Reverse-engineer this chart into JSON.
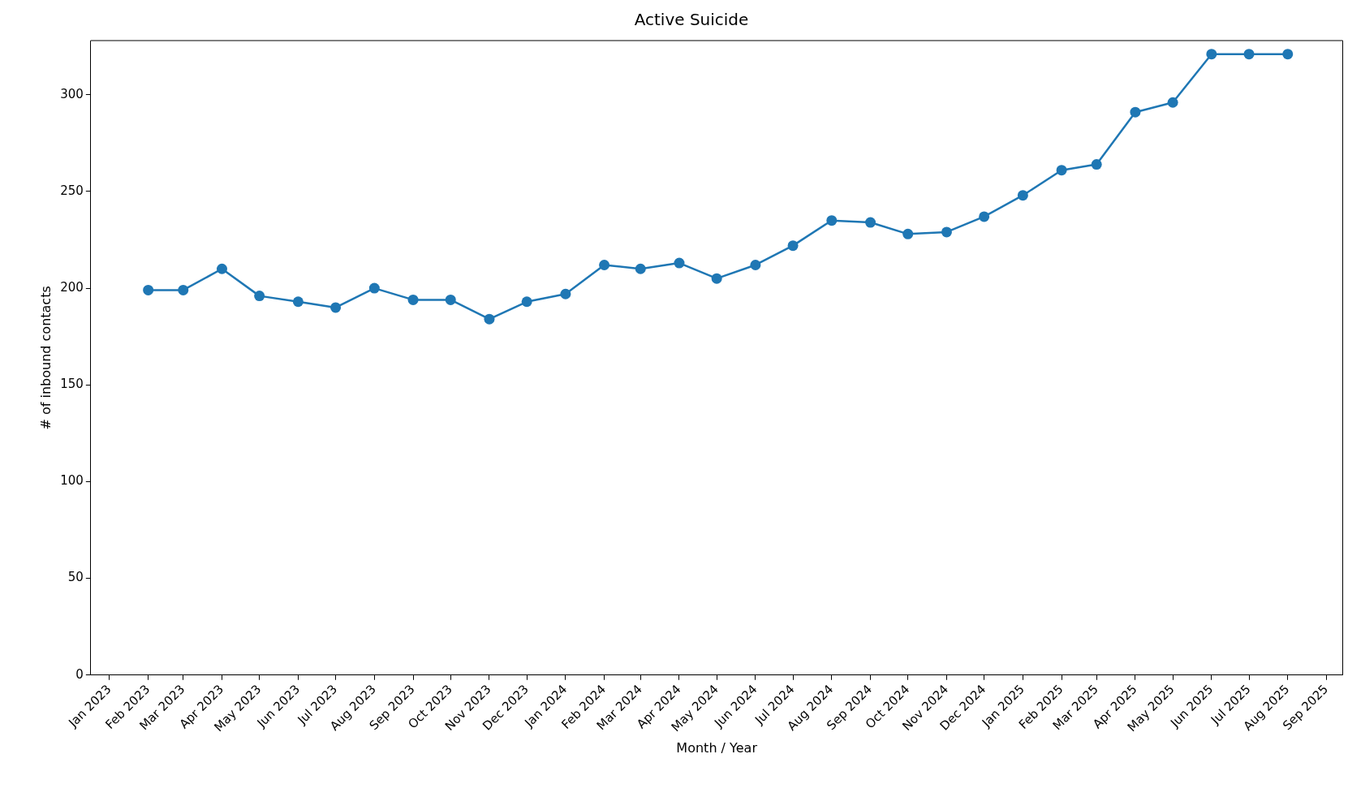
{
  "chart_data": {
    "type": "line",
    "title": "Active Suicide",
    "xlabel": "Month / Year",
    "ylabel": "# of inbound contacts",
    "x": [
      "2023-02",
      "2023-03",
      "2023-04",
      "2023-05",
      "2023-06",
      "2023-07",
      "2023-08",
      "2023-09",
      "2023-10",
      "2023-11",
      "2023-12",
      "2024-01",
      "2024-02",
      "2024-03",
      "2024-04",
      "2024-05",
      "2024-06",
      "2024-07",
      "2024-08",
      "2024-09",
      "2024-10",
      "2024-11",
      "2024-12",
      "2025-01",
      "2025-02",
      "2025-03",
      "2025-04",
      "2025-05",
      "2025-06",
      "2025-07",
      "2025-08"
    ],
    "series": [
      {
        "color": "#1f77b4",
        "values": [
          199,
          199,
          210,
          196,
          193,
          190,
          200,
          194,
          194,
          184,
          193,
          197,
          212,
          210,
          213,
          205,
          212,
          222,
          235,
          234,
          228,
          229,
          237,
          248,
          261,
          264,
          291,
          296,
          321,
          321,
          321
        ]
      }
    ],
    "xlim": [
      "2022-12-17",
      "2025-09-14"
    ],
    "xticks": [
      {
        "value": "2023-01",
        "label": "Jan 2023"
      },
      {
        "value": "2023-02",
        "label": "Feb 2023"
      },
      {
        "value": "2023-03",
        "label": "Mar 2023"
      },
      {
        "value": "2023-04",
        "label": "Apr 2023"
      },
      {
        "value": "2023-05",
        "label": "May 2023"
      },
      {
        "value": "2023-06",
        "label": "Jun 2023"
      },
      {
        "value": "2023-07",
        "label": "Jul 2023"
      },
      {
        "value": "2023-08",
        "label": "Aug 2023"
      },
      {
        "value": "2023-09",
        "label": "Sep 2023"
      },
      {
        "value": "2023-10",
        "label": "Oct 2023"
      },
      {
        "value": "2023-11",
        "label": "Nov 2023"
      },
      {
        "value": "2023-12",
        "label": "Dec 2023"
      },
      {
        "value": "2024-01",
        "label": "Jan 2024"
      },
      {
        "value": "2024-02",
        "label": "Feb 2024"
      },
      {
        "value": "2024-03",
        "label": "Mar 2024"
      },
      {
        "value": "2024-04",
        "label": "Apr 2024"
      },
      {
        "value": "2024-05",
        "label": "May 2024"
      },
      {
        "value": "2024-06",
        "label": "Jun 2024"
      },
      {
        "value": "2024-07",
        "label": "Jul 2024"
      },
      {
        "value": "2024-08",
        "label": "Aug 2024"
      },
      {
        "value": "2024-09",
        "label": "Sep 2024"
      },
      {
        "value": "2024-10",
        "label": "Oct 2024"
      },
      {
        "value": "2024-11",
        "label": "Nov 2024"
      },
      {
        "value": "2024-12",
        "label": "Dec 2024"
      },
      {
        "value": "2025-01",
        "label": "Jan 2025"
      },
      {
        "value": "2025-02",
        "label": "Feb 2025"
      },
      {
        "value": "2025-03",
        "label": "Mar 2025"
      },
      {
        "value": "2025-04",
        "label": "Apr 2025"
      },
      {
        "value": "2025-05",
        "label": "May 2025"
      },
      {
        "value": "2025-06",
        "label": "Jun 2025"
      },
      {
        "value": "2025-07",
        "label": "Jul 2025"
      },
      {
        "value": "2025-08",
        "label": "Aug 2025"
      },
      {
        "value": "2025-09",
        "label": "Sep 2025"
      }
    ],
    "ylim": [
      0,
      328
    ],
    "yticks": [
      0,
      50,
      100,
      150,
      200,
      250,
      300
    ],
    "grid": false,
    "legend": false,
    "marker": "circle",
    "line_style": "solid"
  }
}
